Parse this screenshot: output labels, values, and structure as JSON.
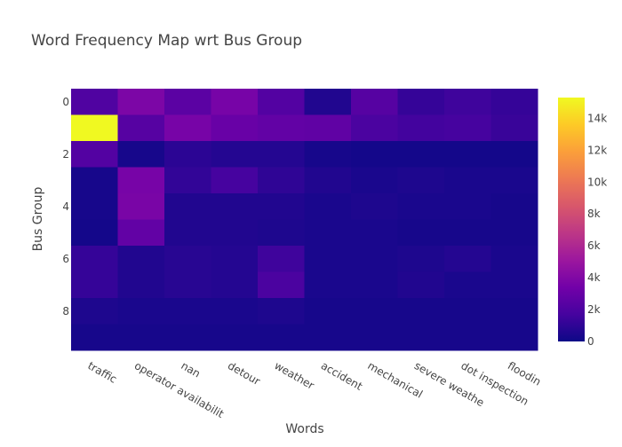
{
  "chart_data": {
    "type": "heatmap",
    "title": "Word Frequency Map wrt Bus Group",
    "xlabel": "Words",
    "ylabel": "Bus Group",
    "x_categories": [
      "traffic",
      "operator availabilit",
      "nan",
      "detour",
      "weather",
      "accident",
      "mechanical",
      "severe weathe",
      "dot inspection",
      "floodin"
    ],
    "y_tick_values": [
      0,
      2,
      4,
      6,
      8
    ],
    "y_tick_labels": [
      "0",
      "2",
      "4",
      "6",
      "8"
    ],
    "y_range": [
      -0.5,
      9.5
    ],
    "colorbar": {
      "range": [
        0,
        15300
      ],
      "tick_values": [
        0,
        2000,
        4000,
        6000,
        8000,
        10000,
        12000,
        14000
      ],
      "tick_labels": [
        "0",
        "2k",
        "4k",
        "6k",
        "8k",
        "10k",
        "12k",
        "14k"
      ]
    },
    "colorscale": [
      "#0d0887",
      "#46039f",
      "#7201a8",
      "#9c179e",
      "#bd3786",
      "#d8576b",
      "#ed7953",
      "#fb9f3a",
      "#fdca26",
      "#f0f921"
    ],
    "z": [
      [
        2100,
        3800,
        2500,
        3600,
        2200,
        600,
        2300,
        1200,
        1500,
        1200
      ],
      [
        15300,
        2300,
        3600,
        3000,
        2800,
        2700,
        1900,
        1600,
        1700,
        1300
      ],
      [
        2200,
        300,
        900,
        700,
        700,
        300,
        200,
        200,
        200,
        200
      ],
      [
        300,
        3600,
        1100,
        1700,
        1000,
        600,
        400,
        500,
        400,
        400
      ],
      [
        300,
        3700,
        600,
        600,
        600,
        400,
        500,
        400,
        400,
        300
      ],
      [
        200,
        2800,
        600,
        600,
        500,
        400,
        400,
        300,
        300,
        300
      ],
      [
        1200,
        600,
        800,
        700,
        1500,
        400,
        400,
        500,
        700,
        400
      ],
      [
        1200,
        600,
        800,
        700,
        1900,
        400,
        400,
        600,
        400,
        400
      ],
      [
        500,
        400,
        400,
        400,
        500,
        300,
        300,
        300,
        300,
        300
      ],
      [
        300,
        300,
        300,
        300,
        300,
        300,
        300,
        300,
        300,
        300
      ]
    ]
  }
}
